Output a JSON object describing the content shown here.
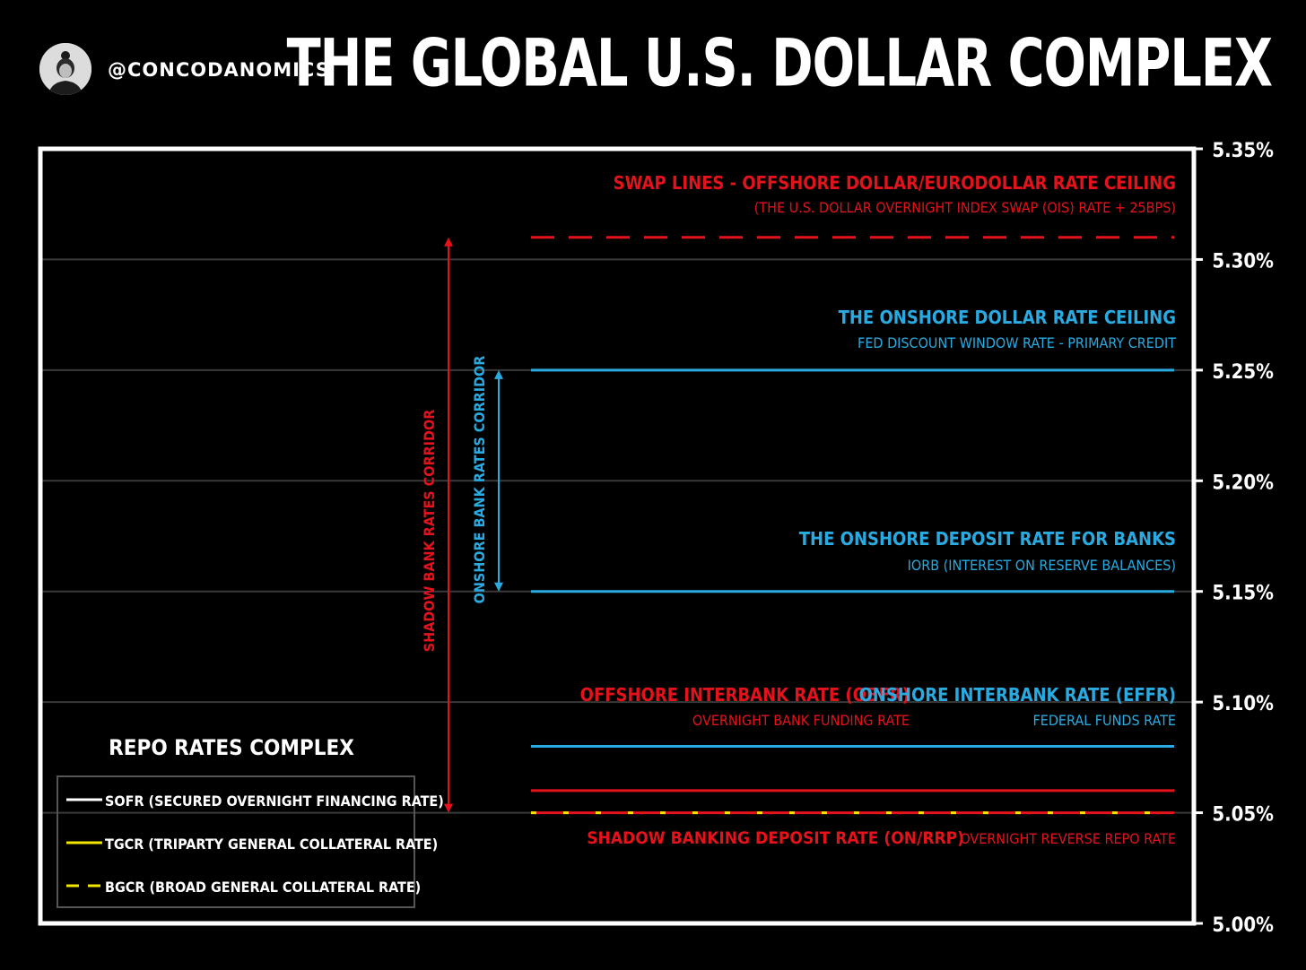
{
  "header": {
    "handle": "@CONCODANOMICS",
    "title": "THE GLOBAL U.S. DOLLAR COMPLEX"
  },
  "colors": {
    "background": "#000000",
    "frame": "#ffffff",
    "grid": "#3a3a3a",
    "red": "#e3121b",
    "blue": "#29abe2",
    "yellow": "#f2e600",
    "white": "#ffffff"
  },
  "chart_data": {
    "type": "line",
    "ylim": [
      5.0,
      5.35
    ],
    "y_ticks": [
      5.0,
      5.05,
      5.1,
      5.15,
      5.2,
      5.25,
      5.3,
      5.35
    ],
    "y_tick_labels": [
      "5.00%",
      "5.05%",
      "5.10%",
      "5.15%",
      "5.20%",
      "5.25%",
      "5.30%",
      "5.35%"
    ],
    "grid": true,
    "series": [
      {
        "name": "SOFR (SECURED OVERNIGHT FINANCING RATE)",
        "value": 5.05,
        "color": "#ffffff",
        "style": "solid"
      },
      {
        "name": "TGCR (TRIPARTY GENERAL COLLATERAL RATE)",
        "value": 5.05,
        "color": "#f2e600",
        "style": "solid"
      },
      {
        "name": "BGCR (BROAD GENERAL COLLATERAL RATE)",
        "value": 5.05,
        "color": "#f2e600",
        "style": "dashed"
      }
    ],
    "rates": [
      {
        "value": 5.31,
        "color": "#e3121b",
        "style": "dashed"
      },
      {
        "value": 5.25,
        "color": "#29abe2",
        "style": "solid"
      },
      {
        "value": 5.15,
        "color": "#29abe2",
        "style": "solid"
      },
      {
        "value": 5.08,
        "color": "#29abe2",
        "style": "solid"
      },
      {
        "value": 5.06,
        "color": "#e3121b",
        "style": "solid"
      },
      {
        "value": 5.05,
        "color": "#e3121b",
        "style": "solid"
      }
    ],
    "annotations": [
      {
        "id": "swap",
        "title": "SWAP LINES - OFFSHORE DOLLAR/EURODOLLAR RATE CEILING",
        "subtitle": "(THE U.S. DOLLAR OVERNIGHT INDEX SWAP (OIS) RATE + 25BPS)",
        "color": "#e3121b"
      },
      {
        "id": "ceiling",
        "title": "THE ONSHORE DOLLAR RATE CEILING",
        "subtitle": "FED DISCOUNT WINDOW RATE - PRIMARY CREDIT",
        "color": "#29abe2"
      },
      {
        "id": "iorb",
        "title": "THE ONSHORE DEPOSIT RATE FOR BANKS",
        "subtitle": "IORB (INTEREST ON RESERVE BALANCES)",
        "color": "#29abe2"
      },
      {
        "id": "obfr",
        "title": "OFFSHORE INTERBANK RATE (OBFR)",
        "subtitle": "OVERNIGHT BANK FUNDING RATE",
        "color": "#e3121b"
      },
      {
        "id": "effr",
        "title": "ONSHORE INTERBANK RATE (EFFR)",
        "subtitle": "FEDERAL FUNDS RATE",
        "color": "#29abe2"
      },
      {
        "id": "onrrp",
        "title": "SHADOW BANKING DEPOSIT RATE (ON/RRP)",
        "subtitle": "OVERNIGHT REVERSE REPO RATE",
        "color": "#e3121b"
      }
    ],
    "corridors": [
      {
        "label": "SHADOW BANK RATES CORRIDOR",
        "from": 5.05,
        "to": 5.31,
        "color": "#e3121b"
      },
      {
        "label": "ONSHORE BANK RATES CORRIDOR",
        "from": 5.15,
        "to": 5.25,
        "color": "#29abe2"
      }
    ],
    "legend": {
      "title": "REPO RATES COMPLEX",
      "placement": "bottom-left"
    }
  }
}
